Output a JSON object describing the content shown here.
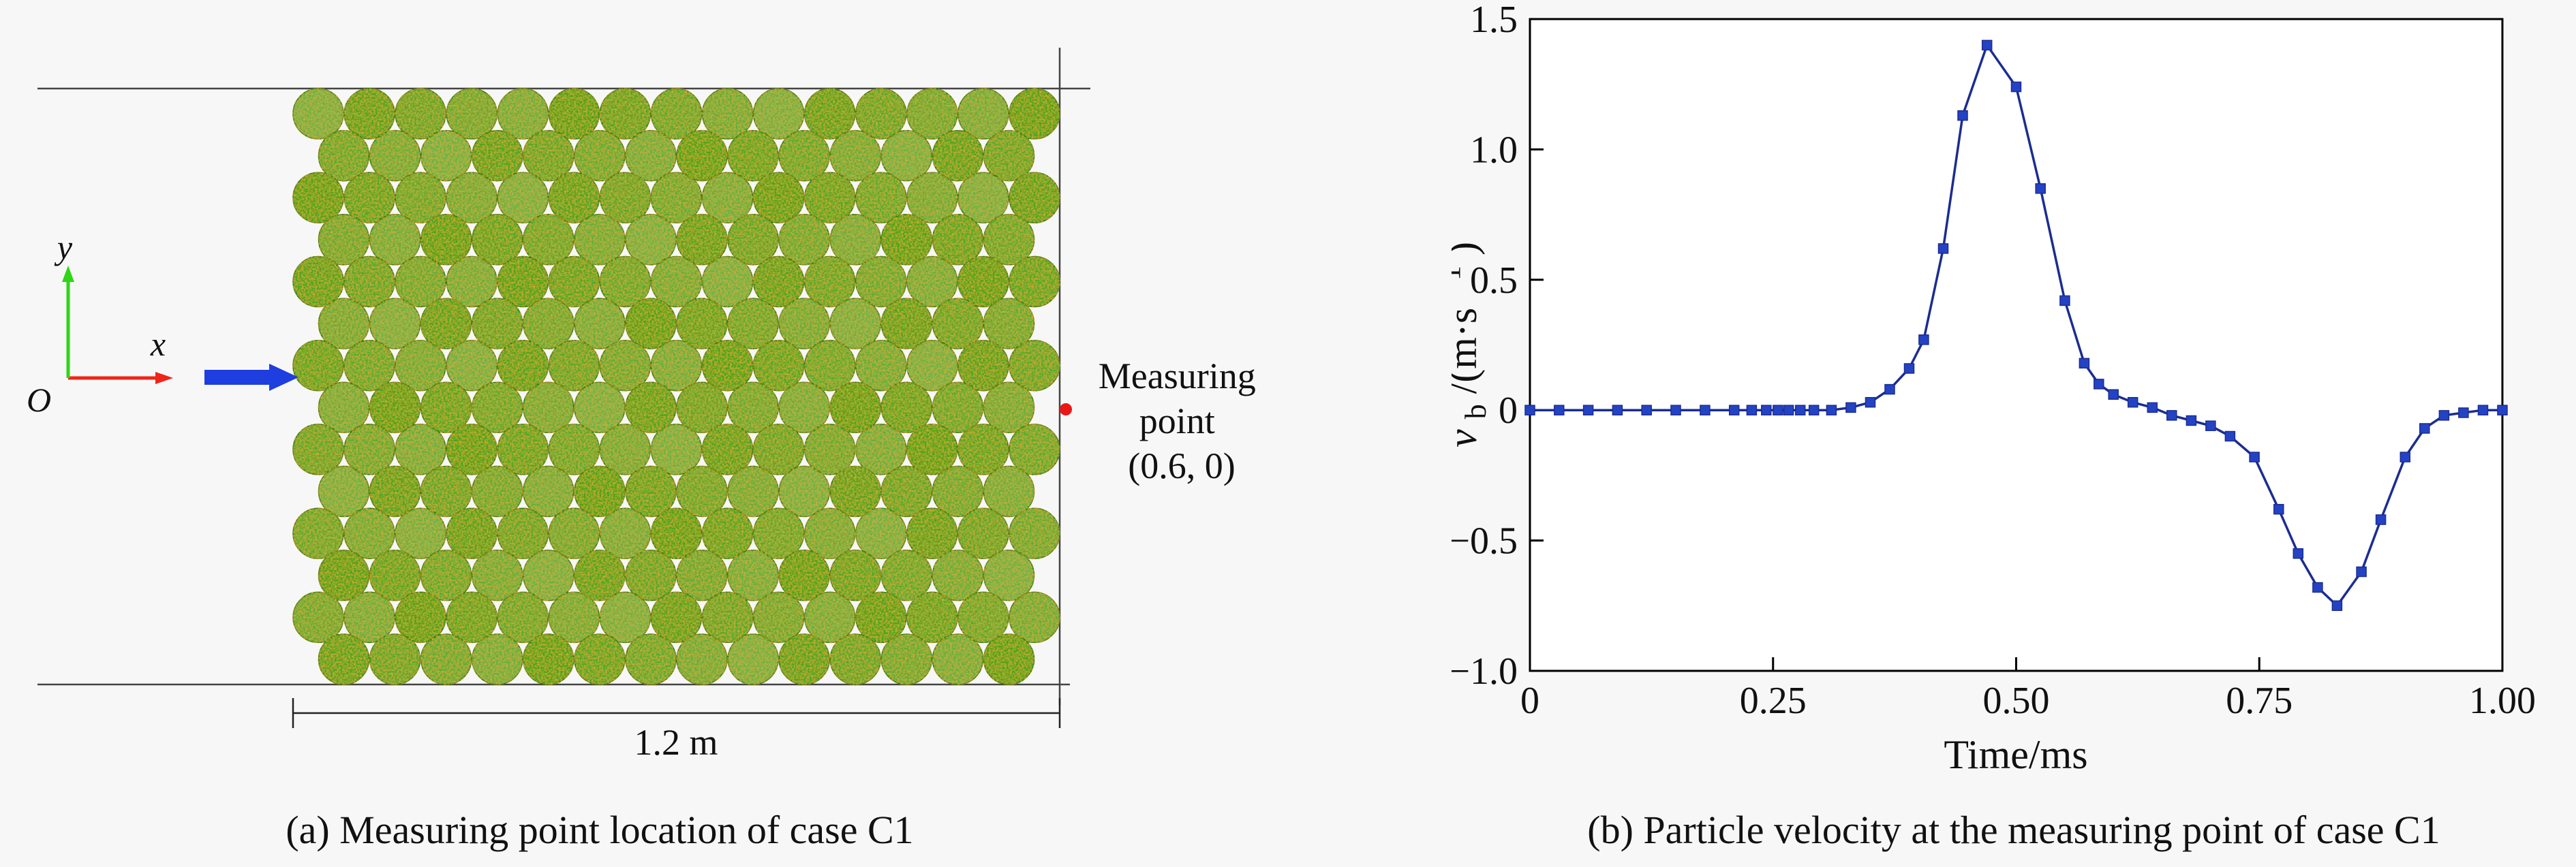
{
  "figure": {
    "background": "#f7f7f7",
    "captions": {
      "a": "(a) Measuring point location of case C1",
      "b": "(b) Particle velocity at the measuring point of case C1"
    }
  },
  "diagram": {
    "origin_label": "O",
    "x_axis_label": "x",
    "y_axis_label": "y",
    "x_axis_color": "#f02418",
    "y_axis_color": "#2ed615",
    "impact_arrow_color": "#1e3ee0",
    "boundary_color": "#444444",
    "particle_base_color": "#44a41d",
    "particle_speckle_color": "#cc6a0a",
    "measuring_point": {
      "label_lines": [
        "Measuring",
        "point",
        "(0.6, 0)"
      ],
      "dot_color": "#ea1717"
    },
    "dimension_label": "1.2 m"
  },
  "chart_data": {
    "type": "line",
    "title": "",
    "xlabel": "Time/ms",
    "ylabel": "vb/(m·s−1)",
    "ylabel_parts": {
      "v": "v",
      "sub": "b",
      "mid": "/(m·s",
      "sup": "−1",
      "end": ")"
    },
    "xlim": [
      0,
      1.0
    ],
    "ylim": [
      -1.0,
      1.5
    ],
    "xticks": [
      0,
      0.25,
      0.5,
      0.75,
      1.0
    ],
    "xtick_labels": [
      "0",
      "0.25",
      "0.50",
      "0.75",
      "1.00"
    ],
    "yticks": [
      1.5,
      1.0,
      0.5,
      0,
      -0.5,
      -1.0
    ],
    "ytick_labels": [
      "1.5",
      "1.0",
      "0.5",
      "0",
      "−0.5",
      "−1.0"
    ],
    "grid": false,
    "legend": "none",
    "line_color": "#1b2d91",
    "marker": "square",
    "marker_color": "#2443c4",
    "series": [
      {
        "name": "particle velocity at measuring point",
        "x": [
          0.0,
          0.03,
          0.06,
          0.09,
          0.12,
          0.15,
          0.18,
          0.21,
          0.228,
          0.243,
          0.255,
          0.266,
          0.278,
          0.292,
          0.31,
          0.33,
          0.35,
          0.37,
          0.39,
          0.405,
          0.425,
          0.445,
          0.47,
          0.5,
          0.525,
          0.55,
          0.57,
          0.585,
          0.6,
          0.62,
          0.64,
          0.66,
          0.68,
          0.7,
          0.72,
          0.745,
          0.77,
          0.79,
          0.81,
          0.83,
          0.855,
          0.875,
          0.9,
          0.92,
          0.94,
          0.96,
          0.98,
          1.0
        ],
        "y": [
          0,
          0,
          0,
          0,
          0,
          0,
          0,
          0,
          0,
          0,
          0,
          0,
          0,
          0,
          0,
          0.01,
          0.03,
          0.08,
          0.16,
          0.27,
          0.62,
          1.13,
          1.4,
          1.24,
          0.85,
          0.42,
          0.18,
          0.1,
          0.06,
          0.03,
          0.01,
          -0.02,
          -0.04,
          -0.06,
          -0.1,
          -0.18,
          -0.38,
          -0.55,
          -0.68,
          -0.75,
          -0.62,
          -0.42,
          -0.18,
          -0.07,
          -0.02,
          -0.01,
          0,
          0
        ]
      }
    ]
  }
}
